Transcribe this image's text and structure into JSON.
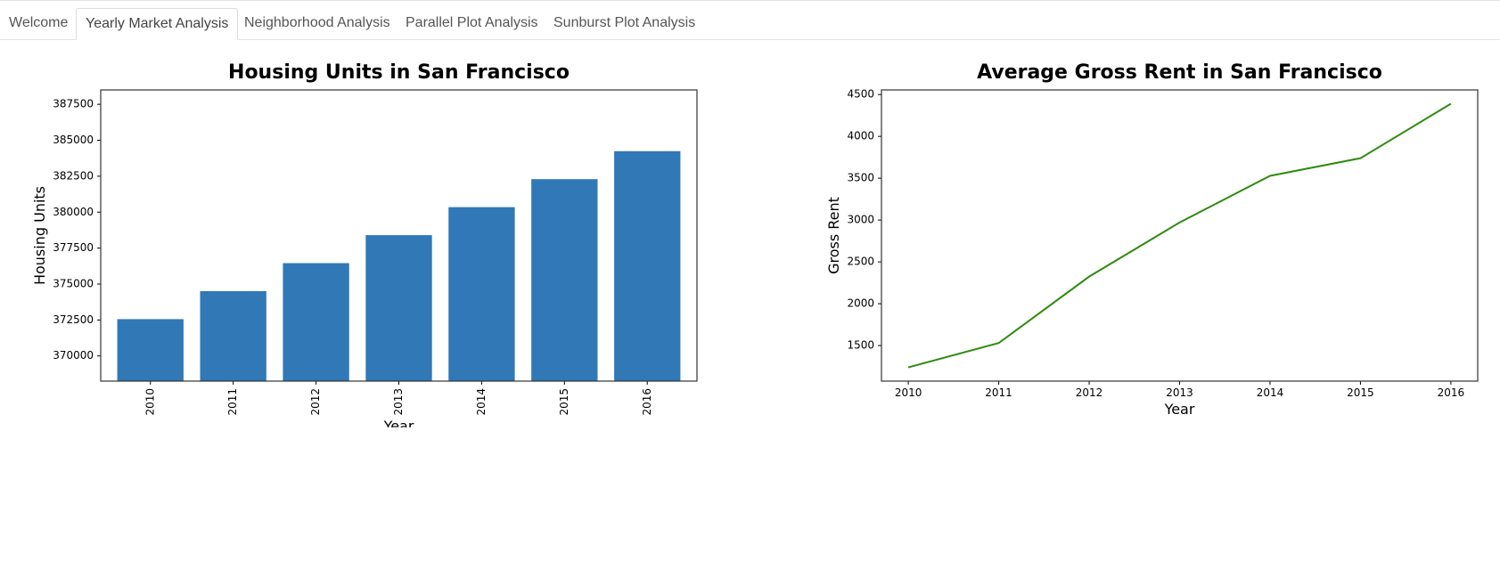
{
  "tabs": [
    {
      "label": "Welcome",
      "active": false
    },
    {
      "label": "Yearly Market Analysis",
      "active": true
    },
    {
      "label": "Neighborhood Analysis",
      "active": false
    },
    {
      "label": "Parallel Plot Analysis",
      "active": false
    },
    {
      "label": "Sunburst Plot Analysis",
      "active": false
    }
  ],
  "chart_data": [
    {
      "type": "bar",
      "title": "Housing Units in San Francisco",
      "xlabel": "Year",
      "ylabel": "Housing Units",
      "categories": [
        "2010",
        "2011",
        "2012",
        "2013",
        "2014",
        "2015",
        "2016"
      ],
      "values": [
        372560,
        374507,
        376454,
        378401,
        380348,
        382295,
        384242
      ],
      "ylim": [
        368250,
        388500
      ],
      "yticks": [
        370000,
        372500,
        375000,
        377500,
        380000,
        382500,
        385000,
        387500
      ],
      "xtick_rotation": "vertical",
      "grid": false,
      "color": "#3178b6"
    },
    {
      "type": "line",
      "title": "Average Gross Rent in San Francisco",
      "xlabel": "Year",
      "ylabel": "Gross Rent",
      "x": [
        "2010",
        "2011",
        "2012",
        "2013",
        "2014",
        "2015",
        "2016"
      ],
      "values": [
        1239,
        1530,
        2324,
        2971,
        3528,
        3739,
        4390
      ],
      "ylim": [
        1075,
        4555
      ],
      "yticks": [
        1500,
        2000,
        2500,
        3000,
        3500,
        4000,
        4500
      ],
      "grid": false,
      "color": "#2e8b0e"
    }
  ]
}
